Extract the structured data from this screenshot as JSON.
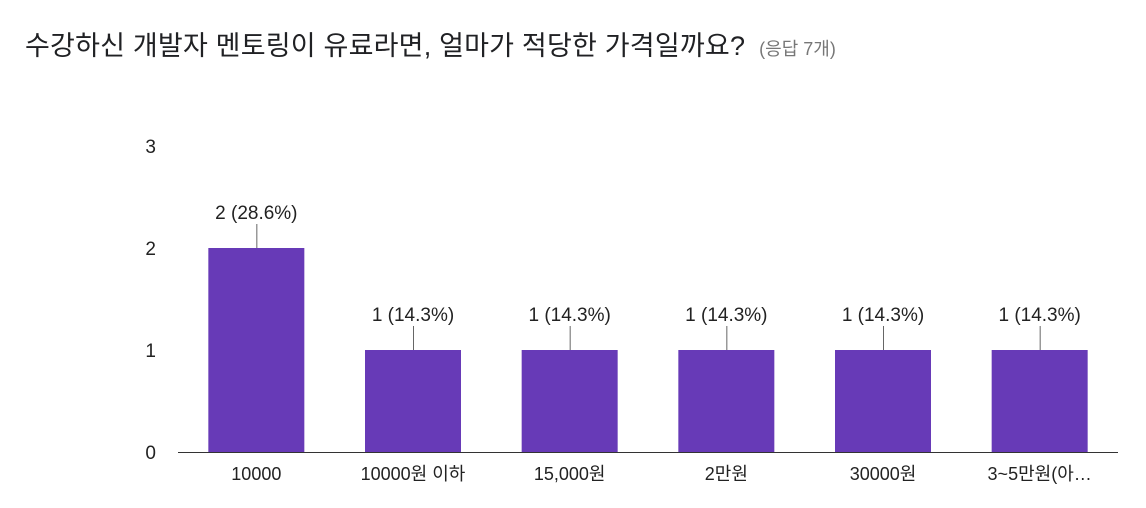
{
  "header": {
    "title": "수강하신 개발자 멘토링이 유료라면, 얼마가 적당한 가격일까요?",
    "response_count": "(응답 7개)"
  },
  "colors": {
    "bar": "#673AB7",
    "axis": "#333333",
    "leader": "#666666",
    "text": "#222222"
  },
  "chart_data": {
    "type": "bar",
    "title": "수강하신 개발자 멘토링이 유료라면, 얼마가 적당한 가격일까요?",
    "xlabel": "",
    "ylabel": "",
    "categories": [
      "10000",
      "10000원 이하",
      "15,000원",
      "2만원",
      "30000원",
      "3~5만원(아…"
    ],
    "values": [
      2,
      1,
      1,
      1,
      1,
      1
    ],
    "data_labels": [
      "2 (28.6%)",
      "1 (14.3%)",
      "1 (14.3%)",
      "1 (14.3%)",
      "1 (14.3%)",
      "1 (14.3%)"
    ],
    "ylim": [
      0,
      3
    ],
    "yticks": [
      0,
      1,
      2,
      3
    ],
    "grid": false,
    "legend": "none"
  }
}
